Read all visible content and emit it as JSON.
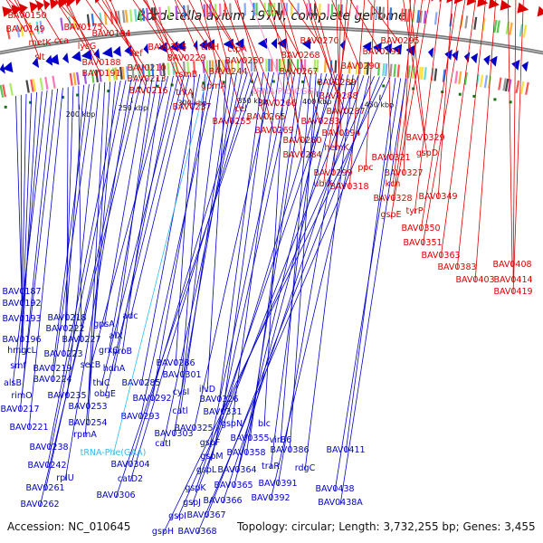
{
  "title": "Bordetella avium 197N, complete genome",
  "footer": {
    "accession": "Accession: NC_010645",
    "summary": "Topology: circular; Length: 3,732,255 bp; Genes: 3,455"
  },
  "colors": {
    "forward": "#dd0000",
    "reverse": "#0000cc",
    "trna": "#ff88cc",
    "trna_reverse": "#33bbee",
    "backbone": "#777777",
    "tick": "#222222",
    "rna_marks": "#117711"
  },
  "ruler_ticks": [
    {
      "label": "200 kbp"
    },
    {
      "label": "250 kbp"
    },
    {
      "label": "300 kbp"
    },
    {
      "label": "350 kbp"
    },
    {
      "label": "400 kbp"
    },
    {
      "label": "450 kbp"
    }
  ],
  "forward_labels": [
    {
      "text": "BAV0150"
    },
    {
      "text": "BAV0149"
    },
    {
      "text": "metK"
    },
    {
      "text": "slt"
    },
    {
      "text": "cca"
    },
    {
      "text": "BAV0175"
    },
    {
      "text": "lysG"
    },
    {
      "text": "BAV0188"
    },
    {
      "text": "BAV0191"
    },
    {
      "text": "BAV0194"
    },
    {
      "text": "def"
    },
    {
      "text": "BAV0210"
    },
    {
      "text": "BAV0213"
    },
    {
      "text": "BAV0216"
    },
    {
      "text": "BAV0215"
    },
    {
      "text": "BAV0229"
    },
    {
      "text": "rsmB"
    },
    {
      "text": "trkA"
    },
    {
      "text": "BAV0237"
    },
    {
      "text": "trkH"
    },
    {
      "text": "gpmA"
    },
    {
      "text": "BAV0244"
    },
    {
      "text": "ctpA"
    },
    {
      "text": "BAV0250"
    },
    {
      "text": "BAV0255"
    },
    {
      "text": "cel"
    },
    {
      "text": "BAV0265"
    },
    {
      "text": "BAV0266"
    },
    {
      "text": "BAV0269"
    },
    {
      "text": "BAV0267"
    },
    {
      "text": "BAV0268"
    },
    {
      "text": "BAV0270"
    },
    {
      "text": "BAV0280"
    },
    {
      "text": "BAV0283"
    },
    {
      "text": "BAV0284"
    },
    {
      "text": "BAV0287"
    },
    {
      "text": "BAV0288"
    },
    {
      "text": "BAV0289"
    },
    {
      "text": "BAV0290"
    },
    {
      "text": "BAV0291"
    },
    {
      "text": "BAV0295"
    },
    {
      "text": "BAV0294"
    },
    {
      "text": "hemK"
    },
    {
      "text": "BAV0299"
    },
    {
      "text": "ubiX"
    },
    {
      "text": "BAV0318"
    },
    {
      "text": "ppc"
    },
    {
      "text": "BAV0321"
    },
    {
      "text": "gspD"
    },
    {
      "text": "BAV0329"
    },
    {
      "text": "BAV0327"
    },
    {
      "text": "kch"
    },
    {
      "text": "BAV0328"
    },
    {
      "text": "gspE"
    },
    {
      "text": "tyrP"
    },
    {
      "text": "BAV0349"
    },
    {
      "text": "BAV0350"
    },
    {
      "text": "BAV0351"
    },
    {
      "text": "BAV0363"
    },
    {
      "text": "BAV0383"
    },
    {
      "text": "BAV0403"
    },
    {
      "text": "BAV0408"
    },
    {
      "text": "BAV0414"
    },
    {
      "text": "BAV0419"
    }
  ],
  "forward_trna_label": "tRNA-Pro(CGG)",
  "reverse_labels": [
    {
      "text": "BAV0187"
    },
    {
      "text": "BAV0192"
    },
    {
      "text": "BAV0193"
    },
    {
      "text": "BAV0196"
    },
    {
      "text": "hmgcL"
    },
    {
      "text": "smf"
    },
    {
      "text": "alsB"
    },
    {
      "text": "rimO"
    },
    {
      "text": "BAV0217"
    },
    {
      "text": "BAV0221"
    },
    {
      "text": "BAV0218"
    },
    {
      "text": "BAV0222"
    },
    {
      "text": "BAV0227"
    },
    {
      "text": "BAV0223"
    },
    {
      "text": "BAV0219"
    },
    {
      "text": "BAV0224"
    },
    {
      "text": "BAV0235"
    },
    {
      "text": "BAV0253"
    },
    {
      "text": "BAV0254"
    },
    {
      "text": "rpmA"
    },
    {
      "text": "BAV0238"
    },
    {
      "text": "BAV0242"
    },
    {
      "text": "rplU"
    },
    {
      "text": "BAV0261"
    },
    {
      "text": "BAV0262"
    },
    {
      "text": "gpsA"
    },
    {
      "text": "alX"
    },
    {
      "text": "grxC"
    },
    {
      "text": "proB"
    },
    {
      "text": "secB"
    },
    {
      "text": "hdhA"
    },
    {
      "text": "thiC"
    },
    {
      "text": "obgE"
    },
    {
      "text": "adc"
    },
    {
      "text": "BAV0286"
    },
    {
      "text": "BAV0285"
    },
    {
      "text": "BAV0301"
    },
    {
      "text": "BAV0292"
    },
    {
      "text": "BAV0293"
    },
    {
      "text": "cysI"
    },
    {
      "text": "ilvD"
    },
    {
      "text": "catl"
    },
    {
      "text": "BAV0303"
    },
    {
      "text": "catI"
    },
    {
      "text": "BAV0304"
    },
    {
      "text": "catD2"
    },
    {
      "text": "BAV0306"
    },
    {
      "text": "BAV0326"
    },
    {
      "text": "BAV0331"
    },
    {
      "text": "BAV0325"
    },
    {
      "text": "gspN"
    },
    {
      "text": "blc"
    },
    {
      "text": "gspF"
    },
    {
      "text": "gspM"
    },
    {
      "text": "BAV0355"
    },
    {
      "text": "BAV0358"
    },
    {
      "text": "virB6"
    },
    {
      "text": "BAV0386"
    },
    {
      "text": "traR"
    },
    {
      "text": "gspL"
    },
    {
      "text": "BAV0364"
    },
    {
      "text": "gspK"
    },
    {
      "text": "BAV0365"
    },
    {
      "text": "BAV0391"
    },
    {
      "text": "rdgC"
    },
    {
      "text": "gspJ"
    },
    {
      "text": "BAV0366"
    },
    {
      "text": "BAV0392"
    },
    {
      "text": "gspI"
    },
    {
      "text": "BAV0367"
    },
    {
      "text": "gspH"
    },
    {
      "text": "BAV0368"
    },
    {
      "text": "BAV0411"
    },
    {
      "text": "BAV0438"
    },
    {
      "text": "BAV0438A"
    }
  ],
  "reverse_trna_label": "tRNA-Phe(GAA)"
}
